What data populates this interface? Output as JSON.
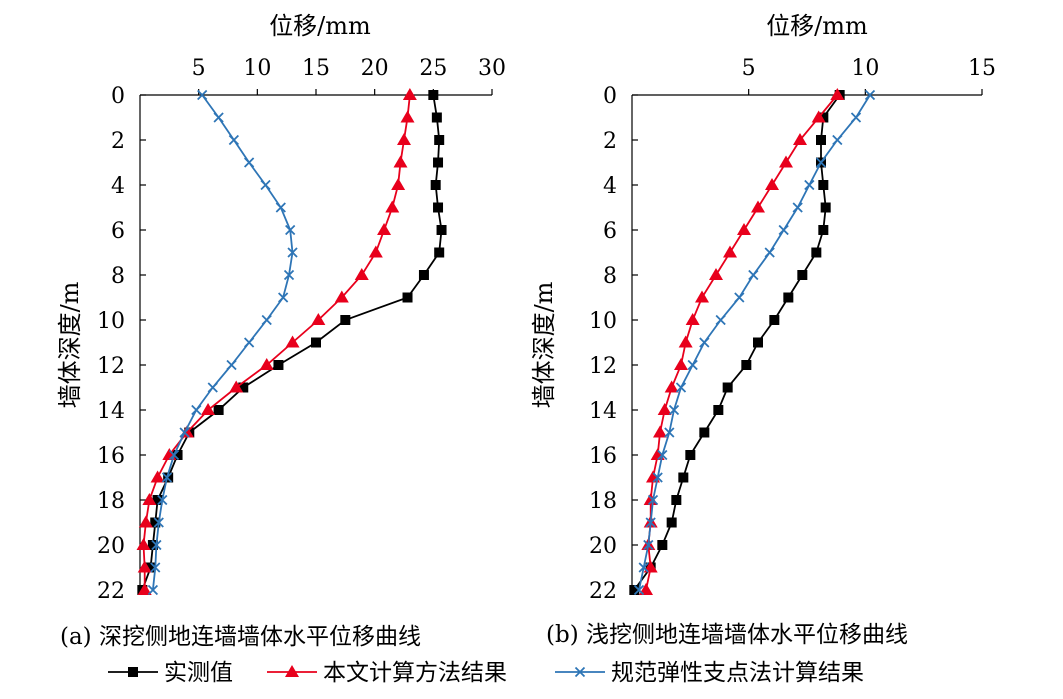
{
  "chart_data": [
    {
      "type": "line",
      "id": "a",
      "xlabel": "位移/mm",
      "ylabel": "墙体深度/m",
      "caption": "(a) 深挖侧地连墙墙体水平位移曲线",
      "x_ticks": [
        "5",
        "10",
        "15",
        "20",
        "25",
        "30"
      ],
      "y_ticks": [
        "0",
        "2",
        "4",
        "6",
        "8",
        "10",
        "12",
        "14",
        "16",
        "18",
        "20",
        "22"
      ],
      "xlim": [
        0,
        30
      ],
      "ylim": [
        0,
        22
      ],
      "x_axis_position": "top",
      "y_inverted": true,
      "series": [
        {
          "name": "实测值",
          "color": "#000000",
          "marker": "square",
          "points": [
            [
              25,
              0
            ],
            [
              25.3,
              1
            ],
            [
              25.5,
              2
            ],
            [
              25.4,
              3
            ],
            [
              25.2,
              4
            ],
            [
              25.4,
              5
            ],
            [
              25.7,
              6
            ],
            [
              25.5,
              7
            ],
            [
              24.2,
              8
            ],
            [
              22.8,
              9
            ],
            [
              17.5,
              10
            ],
            [
              15,
              11
            ],
            [
              11.8,
              12
            ],
            [
              8.8,
              13
            ],
            [
              6.7,
              14
            ],
            [
              4.2,
              15
            ],
            [
              3.2,
              16
            ],
            [
              2.4,
              17
            ],
            [
              1.5,
              18
            ],
            [
              1.3,
              19
            ],
            [
              1.1,
              20
            ],
            [
              0.9,
              21
            ],
            [
              0.2,
              22
            ]
          ]
        },
        {
          "name": "本文计算方法结果",
          "color": "#e8001c",
          "marker": "triangle",
          "points": [
            [
              23,
              0
            ],
            [
              22.8,
              1
            ],
            [
              22.5,
              2
            ],
            [
              22.2,
              3
            ],
            [
              22,
              4
            ],
            [
              21.5,
              5
            ],
            [
              20.8,
              6
            ],
            [
              20.1,
              7
            ],
            [
              18.9,
              8
            ],
            [
              17.2,
              9
            ],
            [
              15.2,
              10
            ],
            [
              13,
              11
            ],
            [
              10.8,
              12
            ],
            [
              8.2,
              13
            ],
            [
              5.8,
              14
            ],
            [
              4,
              15
            ],
            [
              2.5,
              16
            ],
            [
              1.5,
              17
            ],
            [
              0.8,
              18
            ],
            [
              0.5,
              19
            ],
            [
              0.3,
              20
            ],
            [
              0.4,
              21
            ],
            [
              0.4,
              22
            ]
          ]
        },
        {
          "name": "规范弹性支点法计算结果",
          "color": "#2e75b6",
          "marker": "x",
          "points": [
            [
              5.3,
              0
            ],
            [
              6.7,
              1
            ],
            [
              8,
              2
            ],
            [
              9.3,
              3
            ],
            [
              10.7,
              4
            ],
            [
              12,
              5
            ],
            [
              12.8,
              6
            ],
            [
              13,
              7
            ],
            [
              12.7,
              8
            ],
            [
              12.2,
              9
            ],
            [
              10.8,
              10
            ],
            [
              9.3,
              11
            ],
            [
              7.8,
              12
            ],
            [
              6.2,
              13
            ],
            [
              4.8,
              14
            ],
            [
              3.8,
              15
            ],
            [
              2.9,
              16
            ],
            [
              2.3,
              17
            ],
            [
              1.9,
              18
            ],
            [
              1.6,
              19
            ],
            [
              1.4,
              20
            ],
            [
              1.3,
              21
            ],
            [
              1.1,
              22
            ]
          ]
        }
      ]
    },
    {
      "type": "line",
      "id": "b",
      "xlabel": "位移/mm",
      "ylabel": "墙体深度/m",
      "caption": "(b) 浅挖侧地连墙墙体水平位移曲线",
      "x_ticks": [
        "5",
        "10",
        "15"
      ],
      "y_ticks": [
        "0",
        "2",
        "4",
        "6",
        "8",
        "10",
        "12",
        "14",
        "16",
        "18",
        "20",
        "22"
      ],
      "xlim": [
        0,
        15
      ],
      "ylim": [
        0,
        22
      ],
      "x_axis_position": "top",
      "y_inverted": true,
      "series": [
        {
          "name": "实测值",
          "color": "#000000",
          "marker": "square",
          "points": [
            [
              8.9,
              0
            ],
            [
              8.2,
              1
            ],
            [
              8.1,
              2
            ],
            [
              8.1,
              3
            ],
            [
              8.2,
              4
            ],
            [
              8.3,
              5
            ],
            [
              8.2,
              6
            ],
            [
              7.9,
              7
            ],
            [
              7.3,
              8
            ],
            [
              6.7,
              9
            ],
            [
              6.1,
              10
            ],
            [
              5.4,
              11
            ],
            [
              4.9,
              12
            ],
            [
              4.1,
              13
            ],
            [
              3.7,
              14
            ],
            [
              3.1,
              15
            ],
            [
              2.5,
              16
            ],
            [
              2.2,
              17
            ],
            [
              1.9,
              18
            ],
            [
              1.7,
              19
            ],
            [
              1.3,
              20
            ],
            [
              0.8,
              21
            ],
            [
              0.1,
              22
            ]
          ]
        },
        {
          "name": "本文计算方法结果",
          "color": "#e8001c",
          "marker": "triangle",
          "points": [
            [
              8.8,
              0
            ],
            [
              8,
              1
            ],
            [
              7.2,
              2
            ],
            [
              6.6,
              3
            ],
            [
              6,
              4
            ],
            [
              5.4,
              5
            ],
            [
              4.8,
              6
            ],
            [
              4.2,
              7
            ],
            [
              3.6,
              8
            ],
            [
              3,
              9
            ],
            [
              2.6,
              10
            ],
            [
              2.3,
              11
            ],
            [
              2.1,
              12
            ],
            [
              1.7,
              13
            ],
            [
              1.4,
              14
            ],
            [
              1.2,
              15
            ],
            [
              1.1,
              16
            ],
            [
              0.9,
              17
            ],
            [
              0.8,
              18
            ],
            [
              0.8,
              19
            ],
            [
              0.7,
              20
            ],
            [
              0.8,
              21
            ],
            [
              0.6,
              22
            ]
          ]
        },
        {
          "name": "规范弹性支点法计算结果",
          "color": "#2e75b6",
          "marker": "x",
          "points": [
            [
              10.2,
              0
            ],
            [
              9.6,
              1
            ],
            [
              8.8,
              2
            ],
            [
              8.1,
              3
            ],
            [
              7.6,
              4
            ],
            [
              7.1,
              5
            ],
            [
              6.5,
              6
            ],
            [
              5.9,
              7
            ],
            [
              5.2,
              8
            ],
            [
              4.6,
              9
            ],
            [
              3.8,
              10
            ],
            [
              3.1,
              11
            ],
            [
              2.6,
              12
            ],
            [
              2.1,
              13
            ],
            [
              1.8,
              14
            ],
            [
              1.6,
              15
            ],
            [
              1.3,
              16
            ],
            [
              1.1,
              17
            ],
            [
              0.9,
              18
            ],
            [
              0.8,
              19
            ],
            [
              0.7,
              20
            ],
            [
              0.5,
              21
            ],
            [
              0.3,
              22
            ]
          ]
        }
      ]
    }
  ],
  "legend": {
    "placement": "bottom",
    "items": [
      {
        "label": "实测值",
        "color": "#000000",
        "marker": "square"
      },
      {
        "label": "本文计算方法结果",
        "color": "#e8001c",
        "marker": "triangle"
      },
      {
        "label": "规范弹性支点法计算结果",
        "color": "#2e75b6",
        "marker": "x"
      }
    ]
  }
}
